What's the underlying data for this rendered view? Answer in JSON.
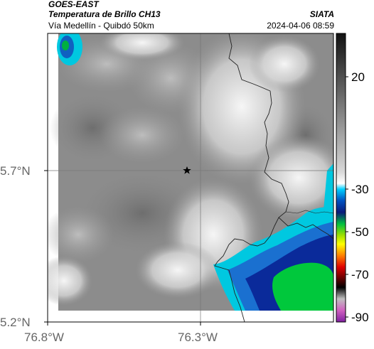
{
  "header": {
    "satellite": "GOES-EAST",
    "product": "Temperatura de Brillo CH13",
    "subtitle": "Vía Medellín - Quibdó 50km",
    "brand": "SIATA",
    "datetime": "2024-04-06 08:59"
  },
  "map": {
    "lat_ticks": [
      {
        "value": 5.7,
        "label": "5.7°N"
      },
      {
        "value": 5.2,
        "label": "5.2°N"
      }
    ],
    "lon_ticks": [
      {
        "value": -76.8,
        "label": "76.8°W"
      },
      {
        "value": -76.3,
        "label": "76.3°W"
      }
    ],
    "lat_range": [
      5.2,
      6.2
    ],
    "lon_range": [
      -76.8,
      -75.85
    ],
    "marker": {
      "type": "star",
      "lat": 5.7,
      "lon": -76.35
    }
  },
  "colorbar": {
    "ticks": [
      {
        "value": 20,
        "label": "20"
      },
      {
        "value": -30,
        "label": "-30"
      },
      {
        "value": -50,
        "label": "-50"
      },
      {
        "value": -70,
        "label": "-70"
      },
      {
        "value": -90,
        "label": "-90"
      }
    ],
    "range": [
      -94,
      40
    ]
  },
  "colors": {
    "warm_gray": "#8a8a8a",
    "cold_white": "#f4f4f4",
    "cyan": "#00c8e0",
    "deep_blue": "#0a2a9a",
    "green": "#00c83c",
    "border_line": "#222222"
  }
}
